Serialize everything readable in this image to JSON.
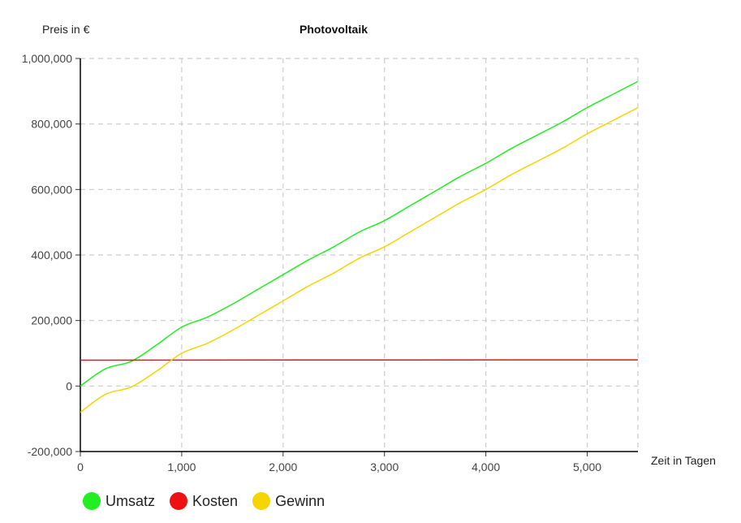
{
  "chart_data": {
    "type": "line",
    "title": "Photovoltaik",
    "ylabel": "Preis in €",
    "xlabel": "Zeit in Tagen",
    "xlim": [
      0,
      5500
    ],
    "ylim": [
      -200000,
      1000000
    ],
    "xticks": [
      0,
      1000,
      2000,
      3000,
      4000,
      5000
    ],
    "xtick_labels": [
      "0",
      "1,000",
      "2,000",
      "3,000",
      "4,000",
      "5,000"
    ],
    "yticks": [
      -200000,
      0,
      200000,
      400000,
      600000,
      800000,
      1000000
    ],
    "ytick_labels": [
      "-200,000",
      "0",
      "200,000",
      "400,000",
      "600,000",
      "800,000",
      "1,000,000"
    ],
    "grid": true,
    "legend_position": "bottom-left",
    "series": [
      {
        "name": "Umsatz",
        "color": "#22ee22",
        "x": [
          0,
          250,
          500,
          750,
          1000,
          1250,
          1500,
          1750,
          2000,
          2250,
          2500,
          2750,
          3000,
          3250,
          3500,
          3750,
          4000,
          4250,
          4500,
          4750,
          5000,
          5250,
          5500
        ],
        "y": [
          0,
          53000,
          75000,
          125000,
          180000,
          210000,
          250000,
          295000,
          340000,
          385000,
          425000,
          470000,
          505000,
          550000,
          595000,
          640000,
          680000,
          725000,
          765000,
          805000,
          850000,
          890000,
          930000
        ]
      },
      {
        "name": "Kosten",
        "color": "#ee1111",
        "x": [
          0,
          5500
        ],
        "y": [
          79000,
          80000
        ]
      },
      {
        "name": "Gewinn",
        "color": "#f5d400",
        "x": [
          0,
          250,
          500,
          750,
          1000,
          1250,
          1500,
          1750,
          2000,
          2250,
          2500,
          2750,
          3000,
          3250,
          3500,
          3750,
          4000,
          4250,
          4500,
          4750,
          5000,
          5250,
          5500
        ],
        "y": [
          -80000,
          -25000,
          -3000,
          45000,
          100000,
          130000,
          170000,
          215000,
          260000,
          305000,
          345000,
          390000,
          425000,
          470000,
          515000,
          560000,
          600000,
          645000,
          685000,
          725000,
          770000,
          810000,
          850000
        ]
      }
    ]
  }
}
